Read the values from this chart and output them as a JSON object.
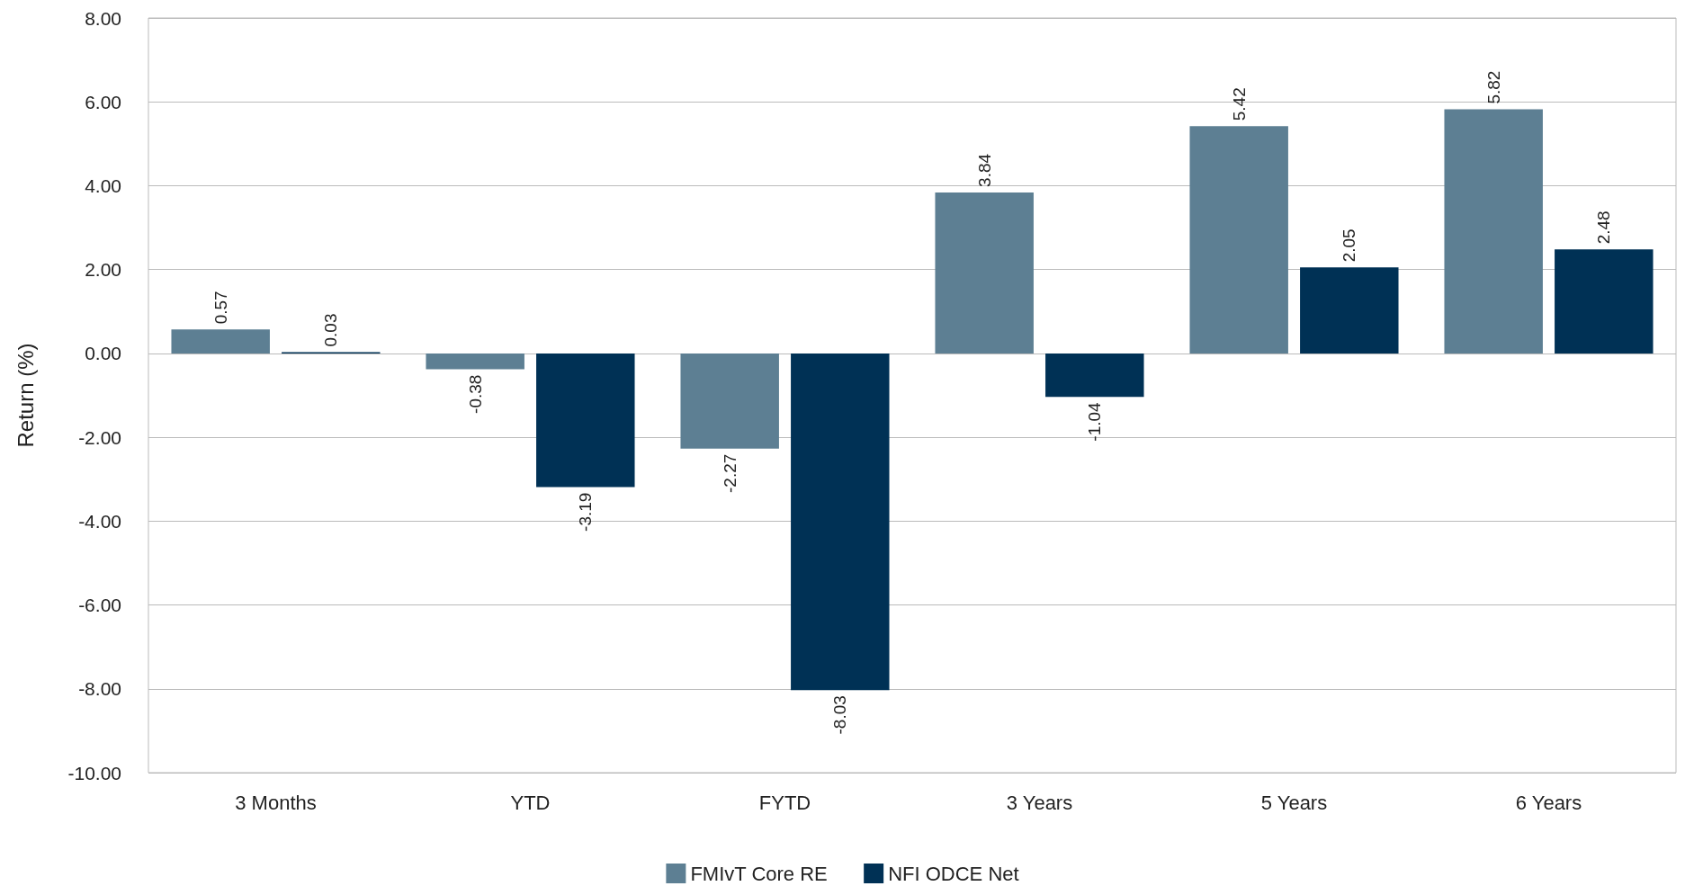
{
  "chart_data": {
    "type": "bar",
    "ylabel": "Return (%)",
    "categories": [
      "3 Months",
      "YTD",
      "FYTD",
      "3 Years",
      "5 Years",
      "6 Years"
    ],
    "series": [
      {
        "name": "FMIvT Core RE",
        "color": "#5d7f93",
        "values": [
          0.57,
          -0.38,
          -2.27,
          3.84,
          5.42,
          5.82
        ]
      },
      {
        "name": "NFI ODCE Net",
        "color": "#003155",
        "values": [
          0.03,
          -3.19,
          -8.03,
          -1.04,
          2.05,
          2.48
        ]
      }
    ],
    "ylim": [
      -10,
      8
    ],
    "yticks": [
      {
        "value": -10,
        "label": "-10.00"
      },
      {
        "value": -8,
        "label": "-8.00"
      },
      {
        "value": -6,
        "label": "-6.00"
      },
      {
        "value": -4,
        "label": "-4.00"
      },
      {
        "value": -2,
        "label": "-2.00"
      },
      {
        "value": 0,
        "label": "0.00"
      },
      {
        "value": 2,
        "label": "2.00"
      },
      {
        "value": 4,
        "label": "4.00"
      },
      {
        "value": 6,
        "label": "6.00"
      },
      {
        "value": 8,
        "label": "8.00"
      }
    ],
    "grid": "y",
    "legend": "bottom",
    "data_labels": true
  }
}
